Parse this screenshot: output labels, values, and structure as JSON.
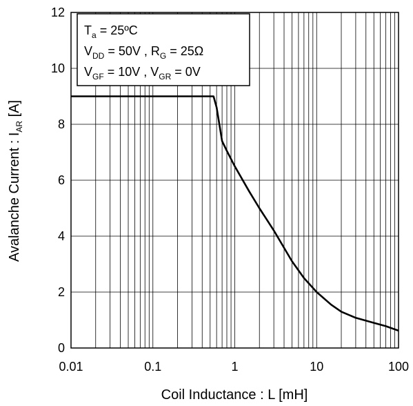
{
  "chart_data": {
    "type": "line",
    "title": "",
    "xlabel": {
      "main": "Coil Inductance : L [mH]"
    },
    "ylabel": {
      "prefix": "Avalanche Current : I",
      "sub": "AR",
      "suffix": " [A]"
    },
    "x_scale": "log",
    "xlim": [
      0.01,
      100
    ],
    "ylim": [
      0,
      12
    ],
    "x_ticks": [
      "0.01",
      "0.1",
      "1",
      "10",
      "100"
    ],
    "y_ticks": [
      "0",
      "2",
      "4",
      "6",
      "8",
      "10",
      "12"
    ],
    "grid": true,
    "annotation": {
      "line1": {
        "a": "T",
        "a_sub": "a",
        "b": " = 25ºC"
      },
      "line2": {
        "a": "V",
        "a_sub": "DD",
        "b": " = 50V , R",
        "b_sub": "G",
        "c": " = 25Ω"
      },
      "line3": {
        "a": "V",
        "a_sub": "GF",
        "b": " = 10V , V",
        "b_sub": "GR",
        "c": " = 0V"
      }
    },
    "series": [
      {
        "x": [
          0.01,
          0.05,
          0.1,
          0.3,
          0.5,
          0.55,
          0.6,
          0.7,
          0.8,
          1,
          1.5,
          2,
          3,
          5,
          7,
          10,
          15,
          20,
          30,
          50,
          70,
          100
        ],
        "y": [
          9,
          9,
          9,
          9,
          9,
          9,
          8.6,
          7.4,
          7.05,
          6.5,
          5.6,
          5.0,
          4.2,
          3.1,
          2.5,
          2.0,
          1.55,
          1.3,
          1.08,
          0.9,
          0.78,
          0.62
        ]
      }
    ]
  }
}
